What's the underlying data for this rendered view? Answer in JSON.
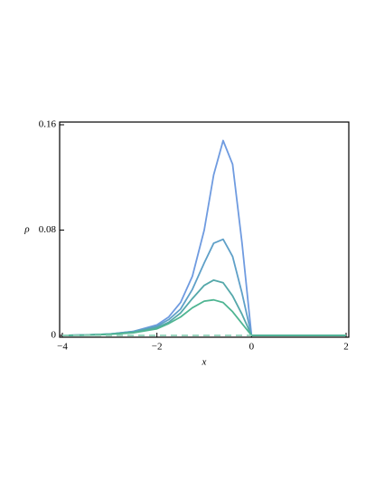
{
  "chart_data": {
    "type": "line",
    "xlabel": "x",
    "ylabel": "ρ",
    "x": [
      -4,
      -3.5,
      -3,
      -2.5,
      -2,
      -1.75,
      -1.5,
      -1.25,
      -1,
      -0.8,
      -0.6,
      -0.4,
      -0.2,
      0,
      0.5,
      1,
      1.5,
      2
    ],
    "series": [
      {
        "color": "#6f9be0",
        "values": [
          0,
          0.0003,
          0.001,
          0.003,
          0.008,
          0.014,
          0.025,
          0.045,
          0.08,
          0.122,
          0.148,
          0.13,
          0.07,
          0,
          0,
          0,
          0,
          0
        ]
      },
      {
        "color": "#5fa0c8",
        "values": [
          0,
          0.0003,
          0.001,
          0.003,
          0.007,
          0.012,
          0.02,
          0.035,
          0.055,
          0.07,
          0.073,
          0.06,
          0.032,
          0,
          0,
          0,
          0,
          0
        ]
      },
      {
        "color": "#55a8aa",
        "values": [
          0,
          0.0003,
          0.001,
          0.0025,
          0.006,
          0.01,
          0.017,
          0.028,
          0.038,
          0.042,
          0.04,
          0.03,
          0.016,
          0,
          0,
          0,
          0,
          0
        ]
      },
      {
        "color": "#4fb592",
        "values": [
          0,
          0.0002,
          0.0008,
          0.002,
          0.005,
          0.009,
          0.014,
          0.021,
          0.026,
          0.027,
          0.025,
          0.018,
          0.009,
          0,
          0,
          0,
          0,
          0
        ]
      },
      {
        "color": "#8fd0b8",
        "dashed": true,
        "values": [
          0,
          0,
          0,
          0,
          0,
          0,
          0,
          0,
          0,
          0,
          0,
          0,
          0,
          0,
          null,
          null,
          null,
          null
        ]
      }
    ],
    "xlim": [
      -4,
      2
    ],
    "ylim": [
      0,
      0.16
    ],
    "xticks": [
      {
        "value": -4,
        "label": "−4"
      },
      {
        "value": -2,
        "label": "−2"
      },
      0,
      2
    ],
    "yticks": [
      0,
      0.08,
      0.16
    ]
  }
}
